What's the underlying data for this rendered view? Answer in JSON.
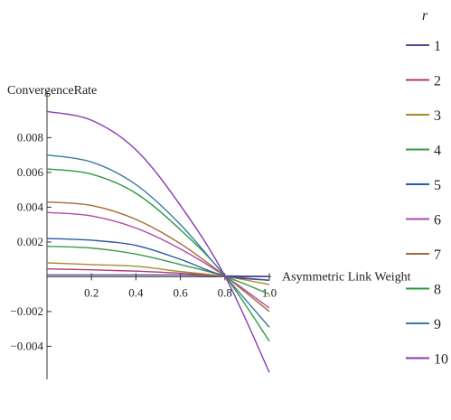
{
  "chart_data": {
    "type": "line",
    "xlabel": "Asymmetric Link Weight",
    "ylabel": "ConvergenceRate",
    "xlim": [
      0,
      1.0
    ],
    "ylim": [
      -0.0059,
      0.0102
    ],
    "x_ticks": [
      {
        "value": 0.2,
        "label": "0.2"
      },
      {
        "value": 0.4,
        "label": "0.4"
      },
      {
        "value": 0.6,
        "label": "0.6"
      },
      {
        "value": 0.8,
        "label": "0.8"
      },
      {
        "value": 1.0,
        "label": "1.0"
      }
    ],
    "y_ticks": [
      {
        "value": -0.004,
        "label": "-0.004"
      },
      {
        "value": -0.002,
        "label": "-0.002"
      },
      {
        "value": 0.002,
        "label": "0.002"
      },
      {
        "value": 0.004,
        "label": "0.004"
      },
      {
        "value": 0.006,
        "label": "0.006"
      },
      {
        "value": 0.008,
        "label": "0.008"
      }
    ],
    "x": [
      0,
      0.2,
      0.4,
      0.6,
      0.8,
      1.0
    ],
    "legend": {
      "title": "r",
      "position": "right"
    },
    "series": [
      {
        "name": "1",
        "color": "#4a4a9a",
        "values": [
          0.0001,
          0.0001,
          0.0001,
          0.0001,
          5e-05,
          2e-05
        ]
      },
      {
        "name": "2",
        "color": "#b03a6e",
        "values": [
          0.00045,
          0.0004,
          0.00032,
          0.0002,
          2e-05,
          -0.0002
        ]
      },
      {
        "name": "3",
        "color": "#a88a2a",
        "values": [
          0.0008,
          0.0007,
          0.0006,
          0.0003,
          2e-05,
          -0.00045
        ]
      },
      {
        "name": "4",
        "color": "#3a9a4a",
        "values": [
          0.00175,
          0.00165,
          0.0013,
          0.0007,
          2e-05,
          -0.001
        ]
      },
      {
        "name": "5",
        "color": "#2a5aa0",
        "values": [
          0.0022,
          0.0021,
          0.0018,
          0.001,
          5e-05,
          -0.0002
        ]
      },
      {
        "name": "6",
        "color": "#b04aa8",
        "values": [
          0.0037,
          0.0035,
          0.0028,
          0.0016,
          5e-05,
          -0.0018
        ]
      },
      {
        "name": "7",
        "color": "#a06a3a",
        "values": [
          0.0043,
          0.0041,
          0.0033,
          0.0019,
          5e-05,
          -0.002
        ]
      },
      {
        "name": "8",
        "color": "#2a9a3a",
        "values": [
          0.0062,
          0.0059,
          0.0048,
          0.0027,
          5e-05,
          -0.0037
        ]
      },
      {
        "name": "9",
        "color": "#3a7aa8",
        "values": [
          0.007,
          0.0066,
          0.0053,
          0.003,
          5e-05,
          -0.0029
        ]
      },
      {
        "name": "10",
        "color": "#8a3ab0",
        "values": [
          0.0095,
          0.009,
          0.0073,
          0.0041,
          5e-05,
          -0.0055
        ]
      }
    ]
  }
}
